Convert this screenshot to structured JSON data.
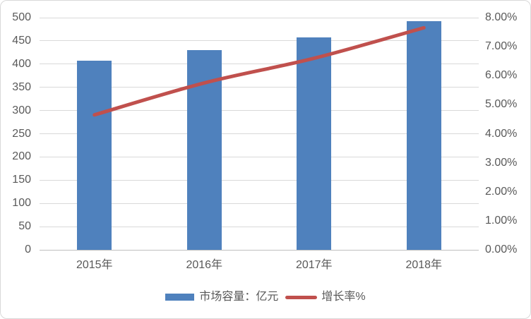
{
  "chart_data": {
    "type": "bar+line",
    "categories": [
      "2015年",
      "2016年",
      "2017年",
      "2018年"
    ],
    "series": [
      {
        "name": "市场容量：亿元",
        "type": "bar",
        "axis": "left",
        "color": "#4F81BD",
        "values": [
          408,
          430,
          458,
          493
        ]
      },
      {
        "name": "增长率%",
        "type": "line",
        "axis": "right",
        "color": "#C0504D",
        "smooth": true,
        "values": [
          4.65,
          5.75,
          6.6,
          7.65
        ]
      }
    ],
    "left_axis": {
      "min": 0,
      "max": 500,
      "step": 50,
      "tick_labels": [
        "0",
        "50",
        "100",
        "150",
        "200",
        "250",
        "300",
        "350",
        "400",
        "450",
        "500"
      ]
    },
    "right_axis": {
      "min": 0,
      "max": 8,
      "step": 1,
      "tick_labels": [
        "0.00%",
        "1.00%",
        "2.00%",
        "3.00%",
        "4.00%",
        "5.00%",
        "6.00%",
        "7.00%",
        "8.00%"
      ]
    },
    "grid": true,
    "legend_position": "bottom"
  },
  "colors": {
    "bar": "#4F81BD",
    "line": "#C0504D",
    "grid": "#D9D9D9",
    "axis_line": "#BFBFBF",
    "text": "#595959",
    "border": "#D9D9D9",
    "background": "#FFFFFF"
  }
}
